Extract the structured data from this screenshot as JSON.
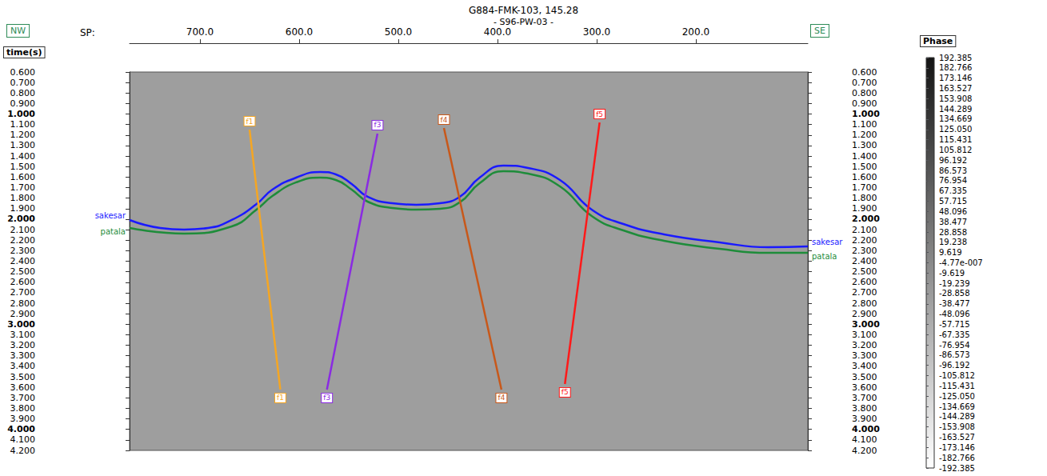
{
  "chart_data": {
    "type": "line",
    "title": "G884-FMK-103, 145.28",
    "subtitle": "- S96-PW-03 -",
    "annotations": {
      "left": "NW",
      "right": "SE"
    },
    "x_label": "SP:",
    "y_label": "time(s)",
    "xlim": [
      771,
      87
    ],
    "xticks": [
      {
        "value": 700,
        "label": "700.0"
      },
      {
        "value": 600,
        "label": "600.0"
      },
      {
        "value": 500,
        "label": "500.0"
      },
      {
        "value": 400,
        "label": "400.0"
      },
      {
        "value": 300,
        "label": "300.0"
      },
      {
        "value": 200,
        "label": "200.0"
      }
    ],
    "ylim": [
      0.6,
      4.2
    ],
    "yticks": [
      {
        "value": 0.6,
        "label": "0.600"
      },
      {
        "value": 0.7,
        "label": "0.700"
      },
      {
        "value": 0.8,
        "label": "0.800"
      },
      {
        "value": 0.9,
        "label": "0.900"
      },
      {
        "value": 1.0,
        "label": "1.000"
      },
      {
        "value": 1.1,
        "label": "1.100"
      },
      {
        "value": 1.2,
        "label": "1.200"
      },
      {
        "value": 1.3,
        "label": "1.300"
      },
      {
        "value": 1.4,
        "label": "1.400"
      },
      {
        "value": 1.5,
        "label": "1.500"
      },
      {
        "value": 1.6,
        "label": "1.600"
      },
      {
        "value": 1.7,
        "label": "1.700"
      },
      {
        "value": 1.8,
        "label": "1.800"
      },
      {
        "value": 1.9,
        "label": "1.900"
      },
      {
        "value": 2.0,
        "label": "2.000"
      },
      {
        "value": 2.1,
        "label": "2.100"
      },
      {
        "value": 2.2,
        "label": "2.200"
      },
      {
        "value": 2.3,
        "label": "2.300"
      },
      {
        "value": 2.4,
        "label": "2.400"
      },
      {
        "value": 2.5,
        "label": "2.500"
      },
      {
        "value": 2.6,
        "label": "2.600"
      },
      {
        "value": 2.7,
        "label": "2.700"
      },
      {
        "value": 2.8,
        "label": "2.800"
      },
      {
        "value": 2.9,
        "label": "2.900"
      },
      {
        "value": 3.0,
        "label": "3.000"
      },
      {
        "value": 3.1,
        "label": "3.100"
      },
      {
        "value": 3.2,
        "label": "3.200"
      },
      {
        "value": 3.3,
        "label": "3.300"
      },
      {
        "value": 3.4,
        "label": "3.400"
      },
      {
        "value": 3.5,
        "label": "3.500"
      },
      {
        "value": 3.6,
        "label": "3.600"
      },
      {
        "value": 3.7,
        "label": "3.700"
      },
      {
        "value": 3.8,
        "label": "3.800"
      },
      {
        "value": 3.9,
        "label": "3.900"
      },
      {
        "value": 4.0,
        "label": "4.000"
      },
      {
        "value": 4.1,
        "label": "4.100"
      },
      {
        "value": 4.2,
        "label": "4.200"
      }
    ],
    "horizons": [
      {
        "name": "sakesar",
        "color": "#1a1aff",
        "x": [
          771,
          740,
          716,
          692,
          668,
          643,
          627,
          603,
          579,
          563,
          547,
          531,
          506,
          482,
          458,
          438,
          418,
          394,
          369,
          337,
          305,
          273,
          232,
          176,
          127,
          87
        ],
        "values": [
          2.008,
          2.084,
          2.099,
          2.084,
          2.008,
          1.856,
          1.719,
          1.605,
          1.551,
          1.574,
          1.665,
          1.787,
          1.848,
          1.863,
          1.848,
          1.787,
          1.605,
          1.49,
          1.513,
          1.627,
          1.909,
          2.046,
          2.145,
          2.221,
          2.267,
          2.259
        ]
      },
      {
        "name": "patala",
        "color": "#1e8c3a",
        "x": [
          771,
          716,
          668,
          643,
          627,
          603,
          579,
          563,
          547,
          531,
          506,
          482,
          458,
          438,
          418,
          394,
          369,
          337,
          305,
          273,
          232,
          176,
          127,
          87
        ],
        "values": [
          2.084,
          2.137,
          2.069,
          1.909,
          1.78,
          1.65,
          1.605,
          1.627,
          1.719,
          1.833,
          1.894,
          1.909,
          1.901,
          1.84,
          1.658,
          1.544,
          1.567,
          1.688,
          1.97,
          2.107,
          2.206,
          2.282,
          2.32,
          2.32
        ]
      }
    ],
    "faults": [
      {
        "name": "f1",
        "color": "#f5a623",
        "x": [
          650,
          619
        ],
        "values": [
          1.148,
          3.621
        ]
      },
      {
        "name": "f3",
        "color": "#8a2be2",
        "x": [
          521,
          572
        ],
        "values": [
          1.186,
          3.621
        ]
      },
      {
        "name": "f4",
        "color": "#c8581a",
        "x": [
          454,
          396
        ],
        "values": [
          1.133,
          3.621
        ]
      },
      {
        "name": "f5",
        "color": "#ff1a1a",
        "x": [
          297,
          332
        ],
        "values": [
          1.08,
          3.568
        ]
      }
    ],
    "colorbar": {
      "title": "Phase",
      "range": [
        -192.385,
        192.385
      ],
      "colors": [
        "#ffffff",
        "#141414"
      ],
      "ticks": [
        192.385,
        182.766,
        173.146,
        163.527,
        153.908,
        144.289,
        134.669,
        {
          "value": 125.05,
          "label": "125.050"
        },
        115.431,
        105.812,
        96.192,
        86.573,
        76.954,
        67.335,
        57.715,
        48.096,
        38.477,
        28.858,
        19.238,
        9.619,
        {
          "value": -4.77e-07,
          "label": "-4.77e-007"
        },
        -9.619,
        -19.239,
        -28.858,
        -38.477,
        -48.096,
        -57.715,
        -67.335,
        -76.954,
        -86.573,
        -96.192,
        -105.812,
        -115.431,
        {
          "value": -125.05,
          "label": "-125.050"
        },
        -134.669,
        -144.289,
        -153.908,
        -163.527,
        -173.146,
        -182.766,
        -192.385
      ]
    }
  }
}
